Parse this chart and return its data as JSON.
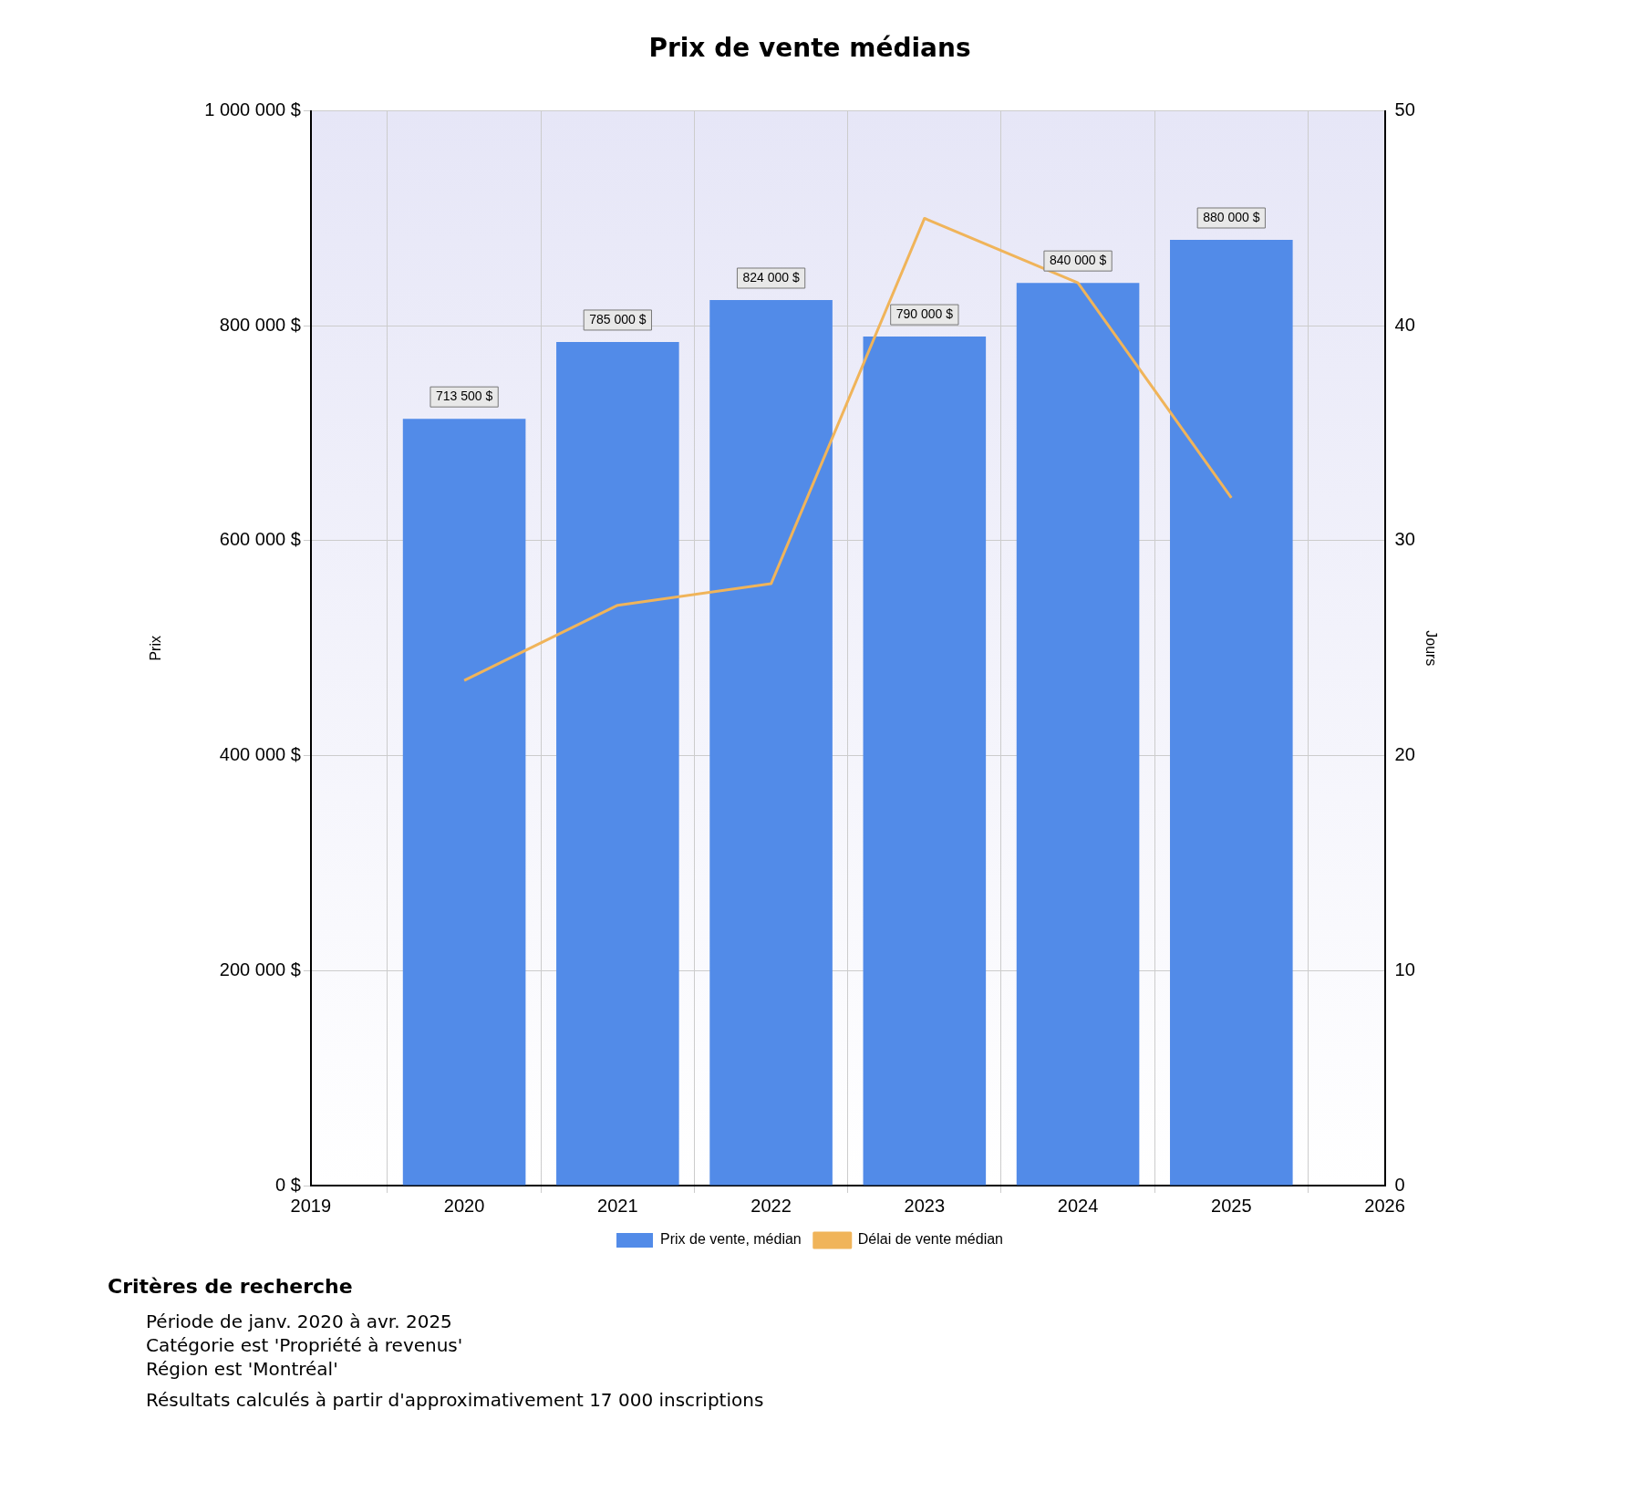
{
  "chart_data": {
    "type": "bar",
    "title": "Prix de vente médians",
    "ylabel": "Prix",
    "y2label": "Jours",
    "x": [
      2020,
      2021,
      2022,
      2023,
      2024,
      2025
    ],
    "series": [
      {
        "name": "Prix de vente, médian",
        "color": "#528be8",
        "values": [
          713500,
          785000,
          824000,
          790000,
          840000,
          880000
        ],
        "value_labels": [
          "713 500 $",
          "785 000 $",
          "824 000 $",
          "790 000 $",
          "840 000 $",
          "880 000 $"
        ]
      },
      {
        "name": "Délai de vente médian",
        "type": "line",
        "axis": "y2",
        "color": "#f0b45a",
        "values": [
          23.5,
          27,
          28,
          45,
          42,
          32
        ]
      }
    ],
    "xlim": [
      2019,
      2026
    ],
    "xticks": [
      2019,
      2020,
      2021,
      2022,
      2023,
      2024,
      2025,
      2026
    ],
    "ylim": [
      0,
      1000000
    ],
    "yticks": [
      {
        "value": 0,
        "label": "0 $"
      },
      {
        "value": 200000,
        "label": "200 000 $"
      },
      {
        "value": 400000,
        "label": "400 000 $"
      },
      {
        "value": 600000,
        "label": "600 000 $"
      },
      {
        "value": 800000,
        "label": "800 000 $"
      },
      {
        "value": 1000000,
        "label": "1 000 000 $"
      }
    ],
    "y2lim": [
      0,
      50
    ],
    "y2ticks": [
      0,
      10,
      20,
      30,
      40,
      50
    ],
    "grid": true,
    "legend": "bottom",
    "marker": "none",
    "annotations": [
      "Critères de recherche",
      "Période de janv. 2020 à avr. 2025",
      "Catégorie est 'Propriété à revenus'",
      "Région est 'Montréal'",
      "Résultats calculés à partir d'approximativement 17 000 inscriptions"
    ]
  }
}
